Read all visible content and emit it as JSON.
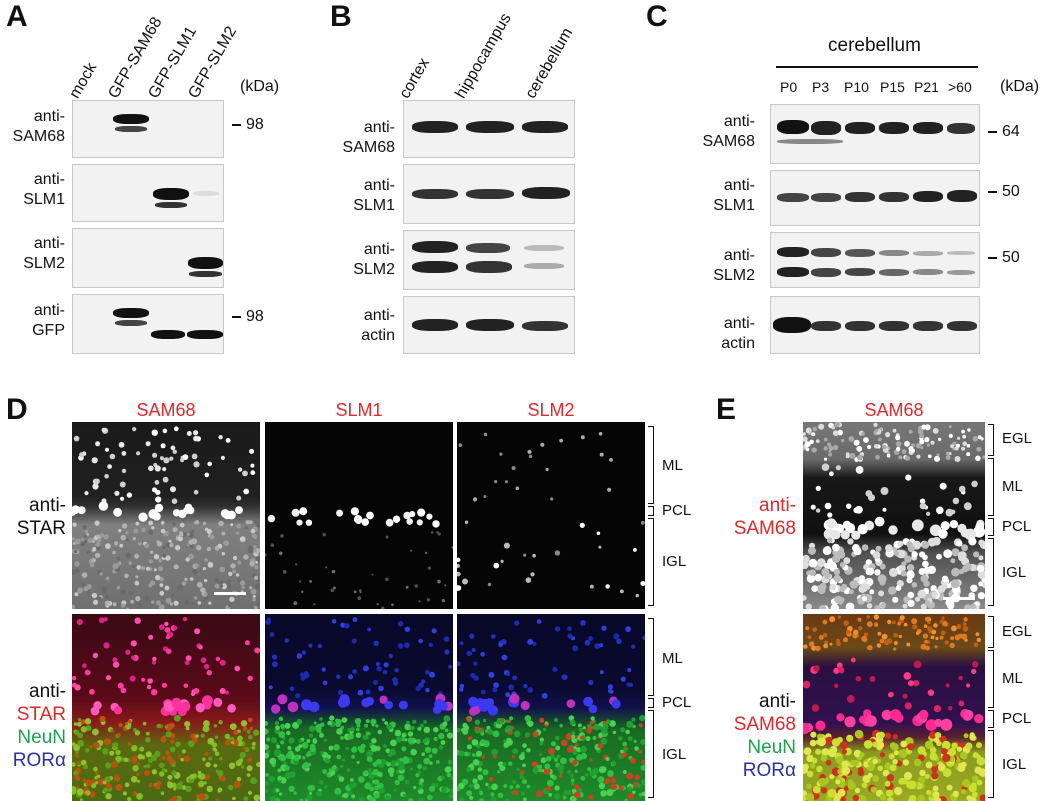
{
  "panels": {
    "a": "A",
    "b": "B",
    "c": "C",
    "d": "D",
    "e": "E"
  },
  "panel_a": {
    "lanes": [
      "mock",
      "GFP-SAM68",
      "GFP-SLM1",
      "GFP-SLM2"
    ],
    "unit": "(kDa)",
    "rows": [
      {
        "l1": "anti-",
        "l2": "SAM68"
      },
      {
        "l1": "anti-",
        "l2": "SLM1"
      },
      {
        "l1": "anti-",
        "l2": "SLM2"
      },
      {
        "l1": "anti-",
        "l2": "GFP"
      }
    ],
    "markers": [
      "98",
      "98"
    ]
  },
  "panel_b": {
    "lanes": [
      "cortex",
      "hippocampus",
      "cerebellum"
    ],
    "rows": [
      {
        "l1": "anti-",
        "l2": "SAM68"
      },
      {
        "l1": "anti-",
        "l2": "SLM1"
      },
      {
        "l1": "anti-",
        "l2": "SLM2"
      },
      {
        "l1": "anti-",
        "l2": "actin"
      }
    ]
  },
  "panel_c": {
    "header": "cerebellum",
    "lanes": [
      "P0",
      "P3",
      "P10",
      "P15",
      "P21",
      ">60"
    ],
    "unit": "(kDa)",
    "rows": [
      {
        "l1": "anti-",
        "l2": "SAM68"
      },
      {
        "l1": "anti-",
        "l2": "SLM1"
      },
      {
        "l1": "anti-",
        "l2": "SLM2"
      },
      {
        "l1": "anti-",
        "l2": "actin"
      }
    ],
    "markers": [
      "64",
      "50",
      "50"
    ]
  },
  "panel_d": {
    "titles": [
      "SAM68",
      "SLM1",
      "SLM2"
    ],
    "top_label": {
      "l1": "anti-",
      "l2": "STAR"
    },
    "bottom_label": {
      "l1": "anti-",
      "l2": "STAR",
      "l3": "NeuN",
      "l4": "RORα"
    },
    "layers": [
      "ML",
      "PCL",
      "IGL"
    ]
  },
  "panel_e": {
    "title": "SAM68",
    "top_label": {
      "l1": "anti-",
      "l2": "SAM68"
    },
    "bottom_label": {
      "l1": "anti-",
      "l2": "SAM68",
      "l3": "NeuN",
      "l4": "RORα"
    },
    "layers": [
      "EGL",
      "ML",
      "PCL",
      "IGL"
    ]
  },
  "colors": {
    "red": "#e0282a",
    "green": "#1aa34a",
    "blue": "#2b2fa0"
  }
}
